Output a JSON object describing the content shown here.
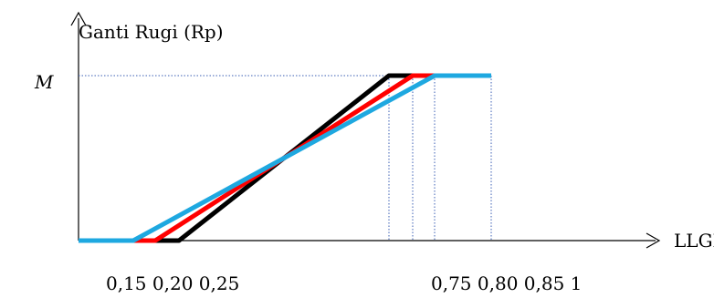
{
  "chart_data": {
    "type": "line",
    "ylabel": "Ganti Rugi (Rp)",
    "xlabel": "LLGP (Ha)",
    "y_marker_label": "M",
    "tick_label_row": [
      "0,15 0,20 0,25",
      "0,75 0,80 0,85  1"
    ],
    "series": [
      {
        "color": "#000000",
        "x": [
          0.0,
          0.25,
          0.75,
          1.0
        ],
        "y": [
          0,
          0,
          1,
          1
        ]
      },
      {
        "color": "#ff0000",
        "x": [
          0.0,
          0.2,
          0.8,
          1.0
        ],
        "y": [
          0,
          0,
          1,
          1
        ]
      },
      {
        "color": "#1ea8e0",
        "x": [
          0.0,
          0.15,
          0.85,
          1.0
        ],
        "y": [
          0,
          0,
          1,
          1
        ]
      }
    ],
    "guide_x": [
      0.75,
      0.8,
      0.85,
      1.0
    ],
    "grid": false
  }
}
